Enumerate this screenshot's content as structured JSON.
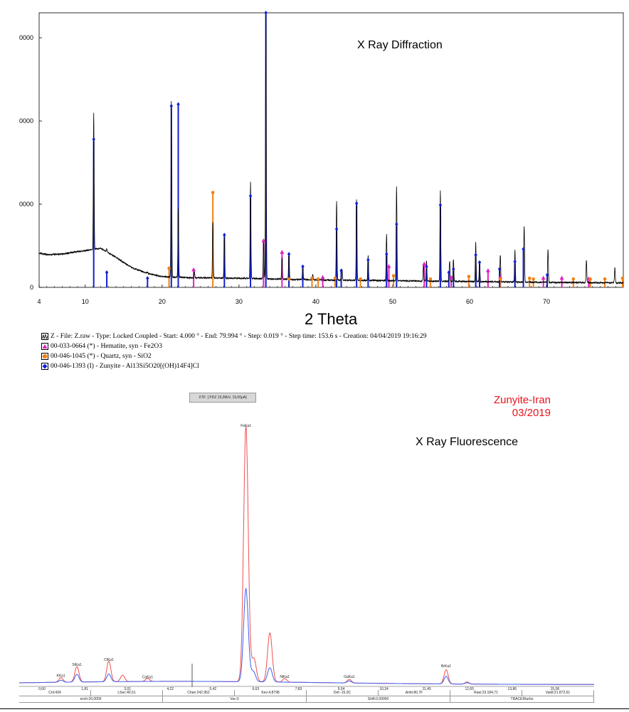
{
  "xrd": {
    "title": "X Ray Diffraction",
    "xlabel": "2 Theta",
    "x_ticks": [
      "4",
      "10",
      "20",
      "30",
      "40",
      "50",
      "60",
      "70"
    ],
    "y_ticks": [
      "0",
      "0000",
      "0000",
      "0000"
    ],
    "legend": [
      {
        "text": "Z - File: Z.raw - Type: Locked Coupled - Start: 4.000 ° - End: 79.994 ° - Step: 0.019 ° - Step time: 153.6 s - Creation: 04/04/2019 19:16:29",
        "color": "#000000",
        "marker": "pattern-icon"
      },
      {
        "text": "00-033-0664 (*) - Hematite, syn - Fe2O3",
        "color": "#e020c0",
        "marker": "triangle-icon"
      },
      {
        "text": "00-046-1045 (*) - Quartz, syn - SiO2",
        "color": "#f08010",
        "marker": "circle-icon"
      },
      {
        "text": "00-046-1393 (I) - Zunyite - Al13Si5O20[(OH)14F4]Cl",
        "color": "#1020d0",
        "marker": "diamond-icon"
      }
    ]
  },
  "xrf": {
    "title": "X Ray Fluorescence",
    "sample_name": "Zunyite-Iran",
    "date": "03/2019",
    "banner": "XTF: [ PDZ 15,00kV, 19,00µA]",
    "x_ticks": [
      "0,60",
      "1,81",
      "3,01",
      "4,22",
      "5,42",
      "6,63",
      "7,83",
      "9,04",
      "10,24",
      "11,45",
      "12,65",
      "13,86",
      "15,06",
      "1"
    ],
    "peak_labels": [
      {
        "label": "KKa1",
        "x": 1.3
      },
      {
        "label": "SiKa1",
        "x": 1.74
      },
      {
        "label": "ClKa1",
        "x": 2.62
      },
      {
        "label": "CaKa1",
        "x": 3.69
      },
      {
        "label": "FeKa1",
        "x": 6.4
      },
      {
        "label": "NiKa1",
        "x": 7.47
      },
      {
        "label": "GaKa1",
        "x": 9.25
      },
      {
        "label": "BrKa1",
        "x": 11.92
      }
    ],
    "status": {
      "row1": [
        "Cnt:434",
        "LSec:40,51",
        "Chan:242,952",
        "Kev:4,8798",
        "Det:-15,0C",
        "Amb:80,7F",
        "Raw:23.184,71",
        "Valid:21.872,61"
      ],
      "row2": [
        "evch:20,0056",
        "Vac:0",
        "Shift:0,00000",
        "TRACERturbo"
      ]
    }
  },
  "chart_data": [
    {
      "type": "line",
      "title": "X Ray Diffraction",
      "xlabel": "2 Theta",
      "ylabel": "",
      "xlim": [
        4,
        80
      ],
      "ylim": [
        0,
        3300
      ],
      "background": [
        [
          4,
          410
        ],
        [
          5,
          395
        ],
        [
          7,
          400
        ],
        [
          9,
          430
        ],
        [
          10.8,
          450
        ],
        [
          12,
          470
        ],
        [
          14,
          360
        ],
        [
          16,
          240
        ],
        [
          18,
          170
        ],
        [
          20,
          130
        ],
        [
          24,
          115
        ],
        [
          30,
          110
        ],
        [
          40,
          90
        ],
        [
          60,
          70
        ],
        [
          70,
          60
        ],
        [
          80,
          55
        ]
      ],
      "series": [
        {
          "name": "Z",
          "peaks": [
            [
              11.1,
              2100
            ],
            [
              12.8,
              460
            ],
            [
              18.1,
              180
            ],
            [
              21.2,
              2240
            ],
            [
              22.1,
              950
            ],
            [
              24.2,
              190
            ],
            [
              26.6,
              790
            ],
            [
              28.1,
              600
            ],
            [
              31.5,
              1270
            ],
            [
              33.2,
              560
            ],
            [
              33.5,
              3300
            ],
            [
              35.6,
              360
            ],
            [
              36.5,
              430
            ],
            [
              38.3,
              270
            ],
            [
              39.6,
              160
            ],
            [
              40.9,
              130
            ],
            [
              42.7,
              1030
            ],
            [
              43.4,
              220
            ],
            [
              45.3,
              1060
            ],
            [
              46.8,
              380
            ],
            [
              49.2,
              640
            ],
            [
              50.5,
              1220
            ],
            [
              54.0,
              270
            ],
            [
              54.4,
              310
            ],
            [
              56.2,
              1160
            ],
            [
              57.4,
              320
            ],
            [
              57.9,
              340
            ],
            [
              60.8,
              540
            ],
            [
              61.3,
              320
            ],
            [
              64.0,
              390
            ],
            [
              65.9,
              450
            ],
            [
              67.1,
              730
            ],
            [
              70.2,
              460
            ],
            [
              75.2,
              320
            ],
            [
              78.9,
              240
            ]
          ]
        },
        {
          "name": "Hematite, syn - Fe2O3",
          "sticks": [
            [
              24.1,
              210
            ],
            [
              33.2,
              560
            ],
            [
              35.6,
              420
            ],
            [
              40.9,
              120
            ],
            [
              49.5,
              250
            ],
            [
              54.1,
              280
            ],
            [
              57.6,
              120
            ],
            [
              62.4,
              200
            ],
            [
              64.0,
              120
            ],
            [
              69.6,
              110
            ],
            [
              72.0,
              110
            ],
            [
              75.5,
              100
            ]
          ]
        },
        {
          "name": "Quartz, syn - SiO2",
          "sticks": [
            [
              20.9,
              230
            ],
            [
              26.6,
              1140
            ],
            [
              36.5,
              100
            ],
            [
              39.5,
              110
            ],
            [
              40.3,
              100
            ],
            [
              42.5,
              110
            ],
            [
              45.8,
              100
            ],
            [
              50.1,
              140
            ],
            [
              54.9,
              100
            ],
            [
              59.9,
              130
            ],
            [
              64.0,
              100
            ],
            [
              67.8,
              110
            ],
            [
              68.3,
              100
            ],
            [
              73.5,
              100
            ],
            [
              75.7,
              100
            ],
            [
              77.6,
              100
            ],
            [
              79.9,
              110
            ]
          ]
        },
        {
          "name": "Zunyite - Al13Si5O20[(OH)14F4]Cl",
          "sticks": [
            [
              11.1,
              1780
            ],
            [
              12.8,
              180
            ],
            [
              18.1,
              110
            ],
            [
              21.2,
              2180
            ],
            [
              22.1,
              2200
            ],
            [
              28.1,
              630
            ],
            [
              31.5,
              1100
            ],
            [
              33.5,
              3300
            ],
            [
              36.5,
              400
            ],
            [
              38.3,
              250
            ],
            [
              42.7,
              700
            ],
            [
              43.3,
              200
            ],
            [
              45.3,
              1010
            ],
            [
              46.8,
              330
            ],
            [
              49.2,
              400
            ],
            [
              50.5,
              760
            ],
            [
              54.4,
              250
            ],
            [
              56.2,
              990
            ],
            [
              57.3,
              180
            ],
            [
              57.9,
              220
            ],
            [
              60.8,
              390
            ],
            [
              61.3,
              300
            ],
            [
              63.9,
              220
            ],
            [
              65.9,
              310
            ],
            [
              67.0,
              460
            ],
            [
              70.1,
              150
            ]
          ]
        }
      ],
      "legend": "bottom"
    },
    {
      "type": "line",
      "title": "X Ray Fluorescence",
      "xlabel": "",
      "ylabel": "",
      "xlim": [
        0.15,
        16.0
      ],
      "ylim": [
        0,
        1000
      ],
      "series": [
        {
          "name": "red",
          "color": "#f05050",
          "background": 12,
          "peaks": [
            [
              1.3,
              18
            ],
            [
              1.74,
              60
            ],
            [
              2.62,
              80
            ],
            [
              3.0,
              25
            ],
            [
              3.69,
              12
            ],
            [
              6.4,
              990
            ],
            [
              6.62,
              90
            ],
            [
              7.06,
              190
            ],
            [
              7.47,
              14
            ],
            [
              9.25,
              14
            ],
            [
              11.92,
              55
            ],
            [
              12.5,
              8
            ]
          ]
        },
        {
          "name": "blue",
          "color": "#4060f0",
          "background": 12,
          "peaks": [
            [
              1.3,
              8
            ],
            [
              1.74,
              30
            ],
            [
              2.62,
              30
            ],
            [
              6.4,
              360
            ],
            [
              6.6,
              40
            ],
            [
              7.06,
              55
            ],
            [
              9.25,
              8
            ],
            [
              11.92,
              30
            ],
            [
              12.5,
              5
            ]
          ]
        }
      ]
    }
  ]
}
